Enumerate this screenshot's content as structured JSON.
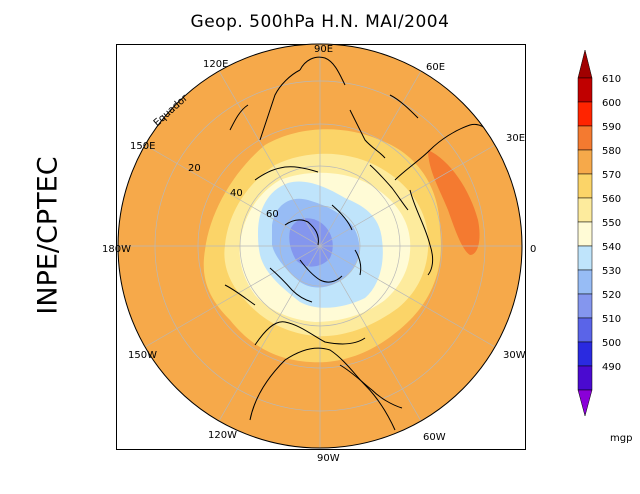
{
  "title": "Geop. 500hPa H.N. MAI/2004",
  "side_label": "INPE/CPTEC",
  "lon_labels": {
    "90E": "90E",
    "60E": "60E",
    "30E": "30E",
    "0": "0",
    "30W": "30W",
    "60W": "60W",
    "90W": "90W",
    "120W": "120W",
    "150W": "150W",
    "180W": "180W",
    "150E": "150E",
    "120E": "120E"
  },
  "lat_labels": {
    "equator": "Equador",
    "20": "20",
    "40": "40",
    "60": "60"
  },
  "colorbar": {
    "unit": "mgp",
    "levels": [
      {
        "label": "610",
        "color": "#c00000"
      },
      {
        "label": "600",
        "color": "#ff2400"
      },
      {
        "label": "590",
        "color": "#f47a30"
      },
      {
        "label": "580",
        "color": "#f6a94a"
      },
      {
        "label": "570",
        "color": "#fbd468"
      },
      {
        "label": "560",
        "color": "#fdeb9d"
      },
      {
        "label": "550",
        "color": "#fffbd6"
      },
      {
        "label": "540",
        "color": "#bfe4fb"
      },
      {
        "label": "530",
        "color": "#97bcf5"
      },
      {
        "label": "520",
        "color": "#8496ee"
      },
      {
        "label": "510",
        "color": "#5a64e8"
      },
      {
        "label": "500",
        "color": "#2a2ae0"
      },
      {
        "label": "490",
        "color": "#4a0ad0"
      }
    ],
    "top_color": "#a00000",
    "bottom_color": "#8a00d8"
  }
}
